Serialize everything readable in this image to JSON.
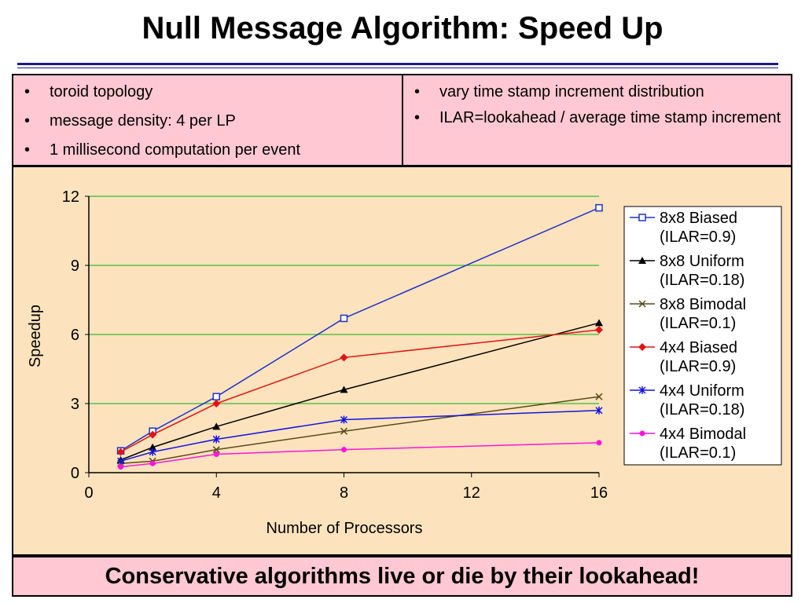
{
  "slide": {
    "title": "Null Message Algorithm: Speed Up",
    "left_bullets": [
      "toroid topology",
      "message density: 4 per LP",
      "1 millisecond computation per event"
    ],
    "right_bullets": [
      "vary time stamp increment distribution",
      "ILAR=lookahead / average time stamp increment"
    ],
    "footer": "Conservative algorithms live or die by their lookahead!"
  },
  "chart_data": {
    "type": "line",
    "xlabel": "Number of Processors",
    "ylabel": "Speedup",
    "xlim": [
      0,
      16
    ],
    "ylim": [
      0,
      12
    ],
    "xticks": [
      0,
      4,
      8,
      12,
      16
    ],
    "yticks": [
      0,
      3,
      6,
      9,
      12
    ],
    "grid": "horizontal",
    "gridColor": "#33bb33",
    "legend": "right",
    "x": [
      1,
      2,
      4,
      8,
      16
    ],
    "series": [
      {
        "name": "8x8 Biased (ILAR=0.9)",
        "legend": [
          "8x8 Biased",
          "(ILAR=0.9)"
        ],
        "values": [
          0.95,
          1.8,
          3.3,
          6.7,
          11.5
        ],
        "color": "#1e32c8",
        "marker": "square"
      },
      {
        "name": "8x8 Uniform (ILAR=0.18)",
        "legend": [
          "8x8 Uniform",
          "(ILAR=0.18)"
        ],
        "values": [
          0.55,
          1.1,
          2.0,
          3.6,
          6.5
        ],
        "color": "#000000",
        "marker": "triangle"
      },
      {
        "name": "8x8 Bimodal (ILAR=0.1)",
        "legend": [
          "8x8 Bimodal",
          "(ILAR=0.1)"
        ],
        "values": [
          0.4,
          0.5,
          1.0,
          1.8,
          3.3
        ],
        "color": "#5a4a18",
        "marker": "x"
      },
      {
        "name": "4x4 Biased (ILAR=0.9)",
        "legend": [
          "4x4 Biased",
          "(ILAR=0.9)"
        ],
        "values": [
          0.9,
          1.65,
          3.0,
          5.0,
          6.2
        ],
        "color": "#e01414",
        "marker": "diamond"
      },
      {
        "name": "4x4 Uniform (ILAR=0.18)",
        "legend": [
          "4x4 Uniform",
          "(ILAR=0.18)"
        ],
        "values": [
          0.5,
          0.9,
          1.45,
          2.3,
          2.7
        ],
        "color": "#1414e0",
        "marker": "asterisk"
      },
      {
        "name": "4x4 Bimodal (ILAR=0.1)",
        "legend": [
          "4x4 Bimodal",
          "(ILAR=0.1)"
        ],
        "values": [
          0.25,
          0.4,
          0.8,
          1.0,
          1.3
        ],
        "color": "#ff14dc",
        "marker": "circle"
      }
    ]
  }
}
